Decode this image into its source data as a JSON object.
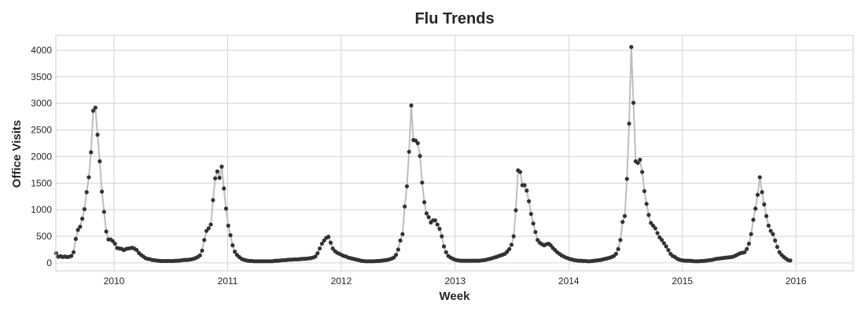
{
  "chart_data": {
    "type": "line",
    "title": "Flu Trends",
    "xlabel": "Week",
    "ylabel": "Office Visits",
    "x_start": "2009-06-29",
    "x_interval": "1 week",
    "xlim": [
      "2009-06-28",
      "2016-07-03"
    ],
    "ylim": [
      -150,
      4280
    ],
    "xticks": [
      "2010",
      "2011",
      "2012",
      "2013",
      "2014",
      "2015",
      "2016"
    ],
    "yticks": [
      0,
      500,
      1000,
      1500,
      2000,
      2500,
      3000,
      3500,
      4000
    ],
    "grid": true,
    "legend": "none",
    "style": {
      "line_color": "#bdbdbd",
      "marker_color": "#333333",
      "grid_color": "#d4d4d4",
      "frame_color": "#cccccc",
      "text_color": "#262626"
    },
    "series": [
      {
        "values": [
          180,
          115,
          125,
          110,
          120,
          110,
          115,
          130,
          200,
          450,
          620,
          680,
          830,
          1010,
          1330,
          1610,
          2080,
          2860,
          2920,
          2410,
          1910,
          1340,
          960,
          590,
          440,
          440,
          410,
          360,
          280,
          270,
          265,
          240,
          260,
          270,
          275,
          285,
          265,
          240,
          185,
          150,
          120,
          90,
          75,
          70,
          55,
          50,
          45,
          40,
          35,
          35,
          35,
          35,
          35,
          35,
          35,
          40,
          40,
          45,
          50,
          55,
          55,
          60,
          65,
          75,
          90,
          110,
          140,
          230,
          430,
          600,
          650,
          720,
          1180,
          1590,
          1720,
          1600,
          1810,
          1400,
          1020,
          700,
          520,
          330,
          210,
          150,
          110,
          80,
          60,
          50,
          40,
          35,
          35,
          30,
          30,
          30,
          30,
          30,
          30,
          30,
          30,
          30,
          35,
          40,
          40,
          45,
          50,
          50,
          55,
          60,
          60,
          65,
          65,
          65,
          70,
          75,
          75,
          80,
          85,
          90,
          100,
          120,
          180,
          270,
          360,
          420,
          470,
          490,
          380,
          270,
          220,
          190,
          170,
          150,
          130,
          120,
          100,
          90,
          80,
          70,
          60,
          50,
          40,
          35,
          30,
          30,
          30,
          30,
          30,
          35,
          35,
          40,
          45,
          50,
          55,
          65,
          80,
          100,
          150,
          250,
          420,
          540,
          1060,
          1440,
          2090,
          2960,
          2310,
          2300,
          2250,
          2010,
          1510,
          1140,
          930,
          860,
          760,
          800,
          800,
          720,
          640,
          500,
          310,
          200,
          130,
          100,
          80,
          60,
          50,
          45,
          40,
          40,
          40,
          40,
          40,
          40,
          40,
          40,
          40,
          45,
          50,
          55,
          65,
          75,
          85,
          100,
          110,
          125,
          140,
          155,
          170,
          210,
          260,
          340,
          500,
          990,
          1740,
          1710,
          1460,
          1460,
          1360,
          1160,
          920,
          740,
          580,
          430,
          380,
          350,
          330,
          350,
          360,
          330,
          280,
          240,
          200,
          170,
          140,
          120,
          100,
          85,
          70,
          60,
          50,
          45,
          40,
          40,
          35,
          35,
          30,
          30,
          35,
          40,
          45,
          50,
          55,
          65,
          75,
          85,
          95,
          110,
          130,
          170,
          260,
          430,
          770,
          880,
          1580,
          2620,
          4060,
          3010,
          1910,
          1880,
          1940,
          1710,
          1350,
          1110,
          900,
          750,
          700,
          650,
          560,
          480,
          430,
          370,
          310,
          240,
          170,
          130,
          110,
          80,
          60,
          50,
          45,
          40,
          40,
          40,
          35,
          30,
          30,
          30,
          35,
          35,
          40,
          45,
          50,
          55,
          65,
          75,
          80,
          85,
          90,
          95,
          100,
          105,
          110,
          120,
          140,
          160,
          180,
          190,
          200,
          260,
          360,
          540,
          810,
          1020,
          1280,
          1610,
          1330,
          1100,
          880,
          700,
          600,
          540,
          420,
          300,
          200,
          150,
          110,
          80,
          50,
          45
        ]
      }
    ]
  }
}
